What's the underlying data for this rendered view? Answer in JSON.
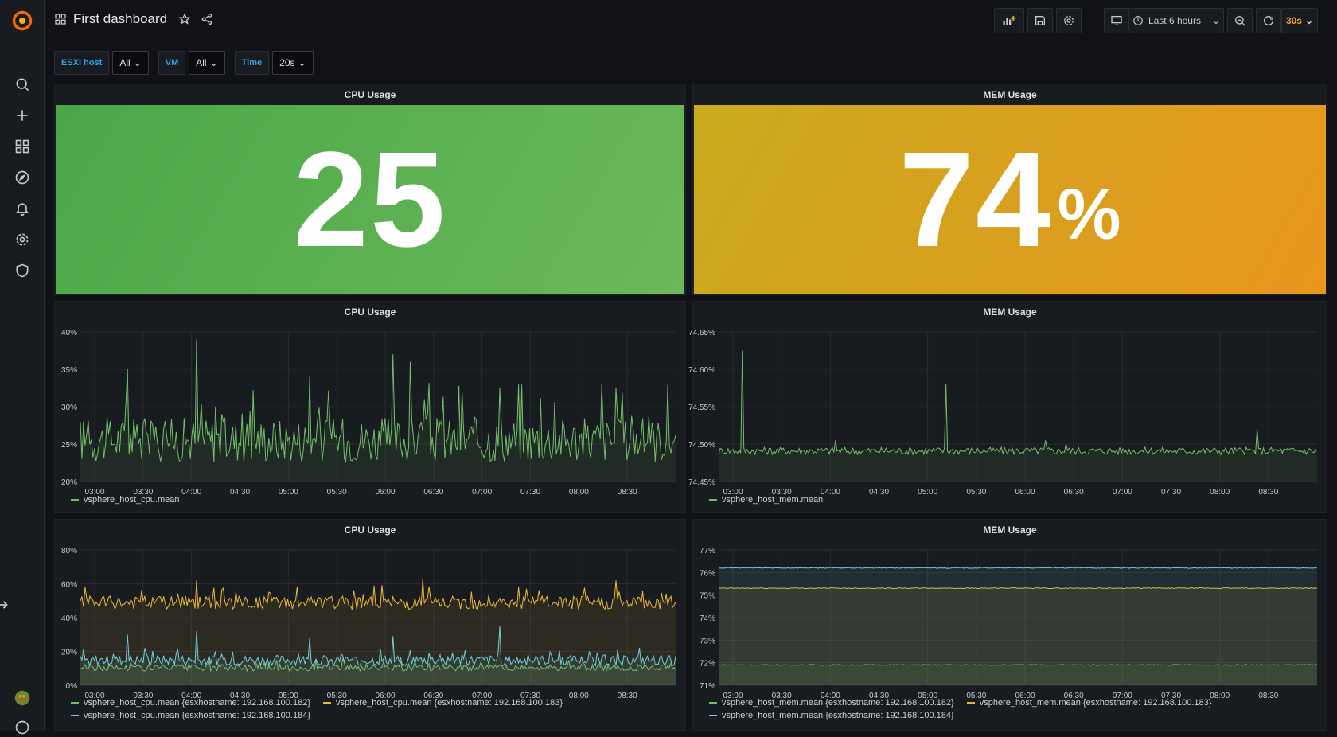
{
  "app": {
    "title": "First dashboard"
  },
  "topbar": {
    "time_range": "Last 6 hours",
    "refresh": "30s"
  },
  "variables": [
    {
      "label": "ESXi host",
      "value": "All"
    },
    {
      "label": "VM",
      "value": "All"
    },
    {
      "label": "Time",
      "value": "20s"
    }
  ],
  "panels": {
    "cpu_stat": {
      "title": "CPU Usage",
      "value": "25"
    },
    "mem_stat": {
      "title": "MEM Usage",
      "value": "74",
      "unit": "%"
    },
    "cpu_graph": {
      "title": "CPU Usage"
    },
    "mem_graph": {
      "title": "MEM Usage"
    },
    "cpu_graph2": {
      "title": "CPU Usage"
    },
    "mem_graph2": {
      "title": "MEM Usage"
    }
  },
  "colors": {
    "green": "#73bf69",
    "yellow": "#f2cc0c",
    "orange": "#eab839",
    "blue": "#5794f2",
    "cyan": "#6ed0e0"
  },
  "chart_data": [
    {
      "type": "line",
      "title": "CPU Usage",
      "x": [
        "03:00",
        "03:30",
        "04:00",
        "04:30",
        "05:00",
        "05:30",
        "06:00",
        "06:30",
        "07:00",
        "07:30",
        "08:00",
        "08:30"
      ],
      "yticks": [
        "20%",
        "25%",
        "30%",
        "35%",
        "40%"
      ],
      "ylim": [
        20,
        40
      ],
      "series": [
        {
          "name": "vsphere_host_cpu.mean",
          "color": "#73bf69",
          "baseline": 25,
          "noise": 3,
          "spikes": [
            [
              0.08,
              35
            ],
            [
              0.195,
              39
            ],
            [
              0.385,
              34
            ],
            [
              0.525,
              37
            ],
            [
              0.555,
              36
            ],
            [
              0.705,
              32.5
            ],
            [
              0.875,
              33
            ],
            [
              0.9,
              32.5
            ]
          ]
        }
      ]
    },
    {
      "type": "line",
      "title": "MEM Usage",
      "x": [
        "03:00",
        "03:30",
        "04:00",
        "04:30",
        "05:00",
        "05:30",
        "06:00",
        "06:30",
        "07:00",
        "07:30",
        "08:00",
        "08:30"
      ],
      "yticks": [
        "74.45%",
        "74.50%",
        "74.55%",
        "74.60%",
        "74.65%"
      ],
      "ylim": [
        74.45,
        74.65
      ],
      "series": [
        {
          "name": "vsphere_host_mem.mean",
          "color": "#73bf69",
          "baseline": 74.49,
          "noise": 0.005,
          "spikes": [
            [
              0.04,
              74.625
            ],
            [
              0.195,
              74.505
            ],
            [
              0.38,
              74.58
            ],
            [
              0.545,
              74.505
            ],
            [
              0.58,
              74.5
            ],
            [
              0.9,
              74.52
            ]
          ]
        }
      ]
    },
    {
      "type": "area",
      "title": "CPU Usage",
      "x": [
        "03:00",
        "03:30",
        "04:00",
        "04:30",
        "05:00",
        "05:30",
        "06:00",
        "06:30",
        "07:00",
        "07:30",
        "08:00",
        "08:30"
      ],
      "yticks": [
        "0%",
        "20%",
        "40%",
        "60%",
        "80%"
      ],
      "ylim": [
        0,
        80
      ],
      "series": [
        {
          "name": "vsphere_host_cpu.mean {esxhostname: 192.168.100.182}",
          "color": "#73bf69",
          "baseline": 10,
          "noise": 2,
          "spikes": []
        },
        {
          "name": "vsphere_host_cpu.mean {esxhostname: 192.168.100.183}",
          "color": "#eab839",
          "baseline": 48,
          "noise": 4,
          "spikes": [
            [
              0.195,
              62
            ],
            [
              0.575,
              63
            ],
            [
              0.9,
              62
            ]
          ]
        },
        {
          "name": "vsphere_host_cpu.mean {esxhostname: 192.168.100.184}",
          "color": "#6ed0e0",
          "baseline": 14,
          "noise": 3,
          "spikes": [
            [
              0.08,
              30
            ],
            [
              0.195,
              32
            ],
            [
              0.385,
              28
            ],
            [
              0.525,
              29
            ],
            [
              0.705,
              35
            ]
          ]
        }
      ]
    },
    {
      "type": "area",
      "title": "MEM Usage",
      "x": [
        "03:00",
        "03:30",
        "04:00",
        "04:30",
        "05:00",
        "05:30",
        "06:00",
        "06:30",
        "07:00",
        "07:30",
        "08:00",
        "08:30"
      ],
      "yticks": [
        "71%",
        "72%",
        "73%",
        "74%",
        "75%",
        "76%",
        "77%"
      ],
      "ylim": [
        71,
        77
      ],
      "series": [
        {
          "name": "vsphere_host_mem.mean {esxhostname: 192.168.100.182}",
          "color": "#73bf69",
          "baseline": 71.9,
          "noise": 0.02,
          "spikes": []
        },
        {
          "name": "vsphere_host_mem.mean {esxhostname: 192.168.100.183}",
          "color": "#eab839",
          "baseline": 75.3,
          "noise": 0.02,
          "spikes": []
        },
        {
          "name": "vsphere_host_mem.mean {esxhostname: 192.168.100.184}",
          "color": "#6ed0e0",
          "baseline": 76.2,
          "noise": 0.02,
          "spikes": []
        }
      ]
    }
  ]
}
